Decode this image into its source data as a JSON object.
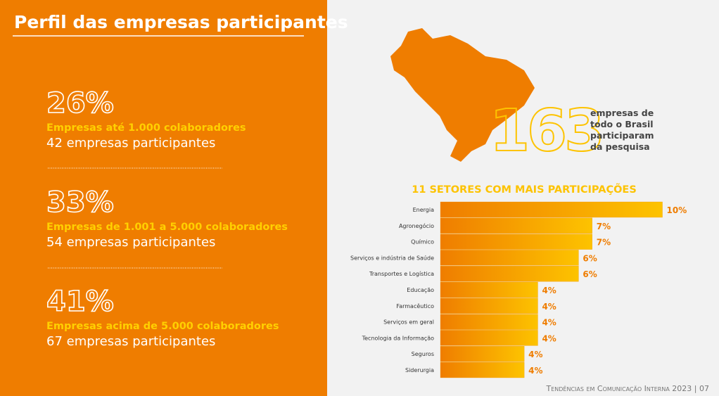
{
  "title": "Perfil das empresas participantes",
  "profiles": [
    {
      "percent": "26%",
      "label": "Empresas até 1.000 colaboradores",
      "count": "42 empresas participantes"
    },
    {
      "percent": "33%",
      "label": "Empresas de 1.001 a 5.000 colaboradores",
      "count": "54 empresas participantes"
    },
    {
      "percent": "41%",
      "label": "Empresas acima de 5.000 colaboradores",
      "count": "67 empresas participantes"
    }
  ],
  "highlight": {
    "number": "163",
    "text": [
      "empresas de",
      "todo o Brasil",
      "participaram",
      "da pesquisa"
    ]
  },
  "chart_data": {
    "type": "bar",
    "orientation": "horizontal",
    "title": "11 SETORES COM MAIS PARTICIPAÇÕES",
    "categories": [
      "Energia",
      "Agronegócio",
      "Químico",
      "Serviços e indústria de Saúde",
      "Transportes e Logística",
      "Educação",
      "Farmacêutico",
      "Serviços em geral",
      "Tecnologia da Informação",
      "Seguros",
      "Siderurgia"
    ],
    "values": [
      9.8,
      6.7,
      6.7,
      6.1,
      6.1,
      4.3,
      4.3,
      4.3,
      4.3,
      3.7,
      3.7
    ],
    "value_labels": [
      "10%",
      "7%",
      "7%",
      "6%",
      "6%",
      "4%",
      "4%",
      "4%",
      "4%",
      "4%",
      "4%"
    ],
    "xlim": [
      0,
      10
    ],
    "color": "#f29400"
  },
  "footer": "Tendências em Comunicação Interna 2023 | 07"
}
